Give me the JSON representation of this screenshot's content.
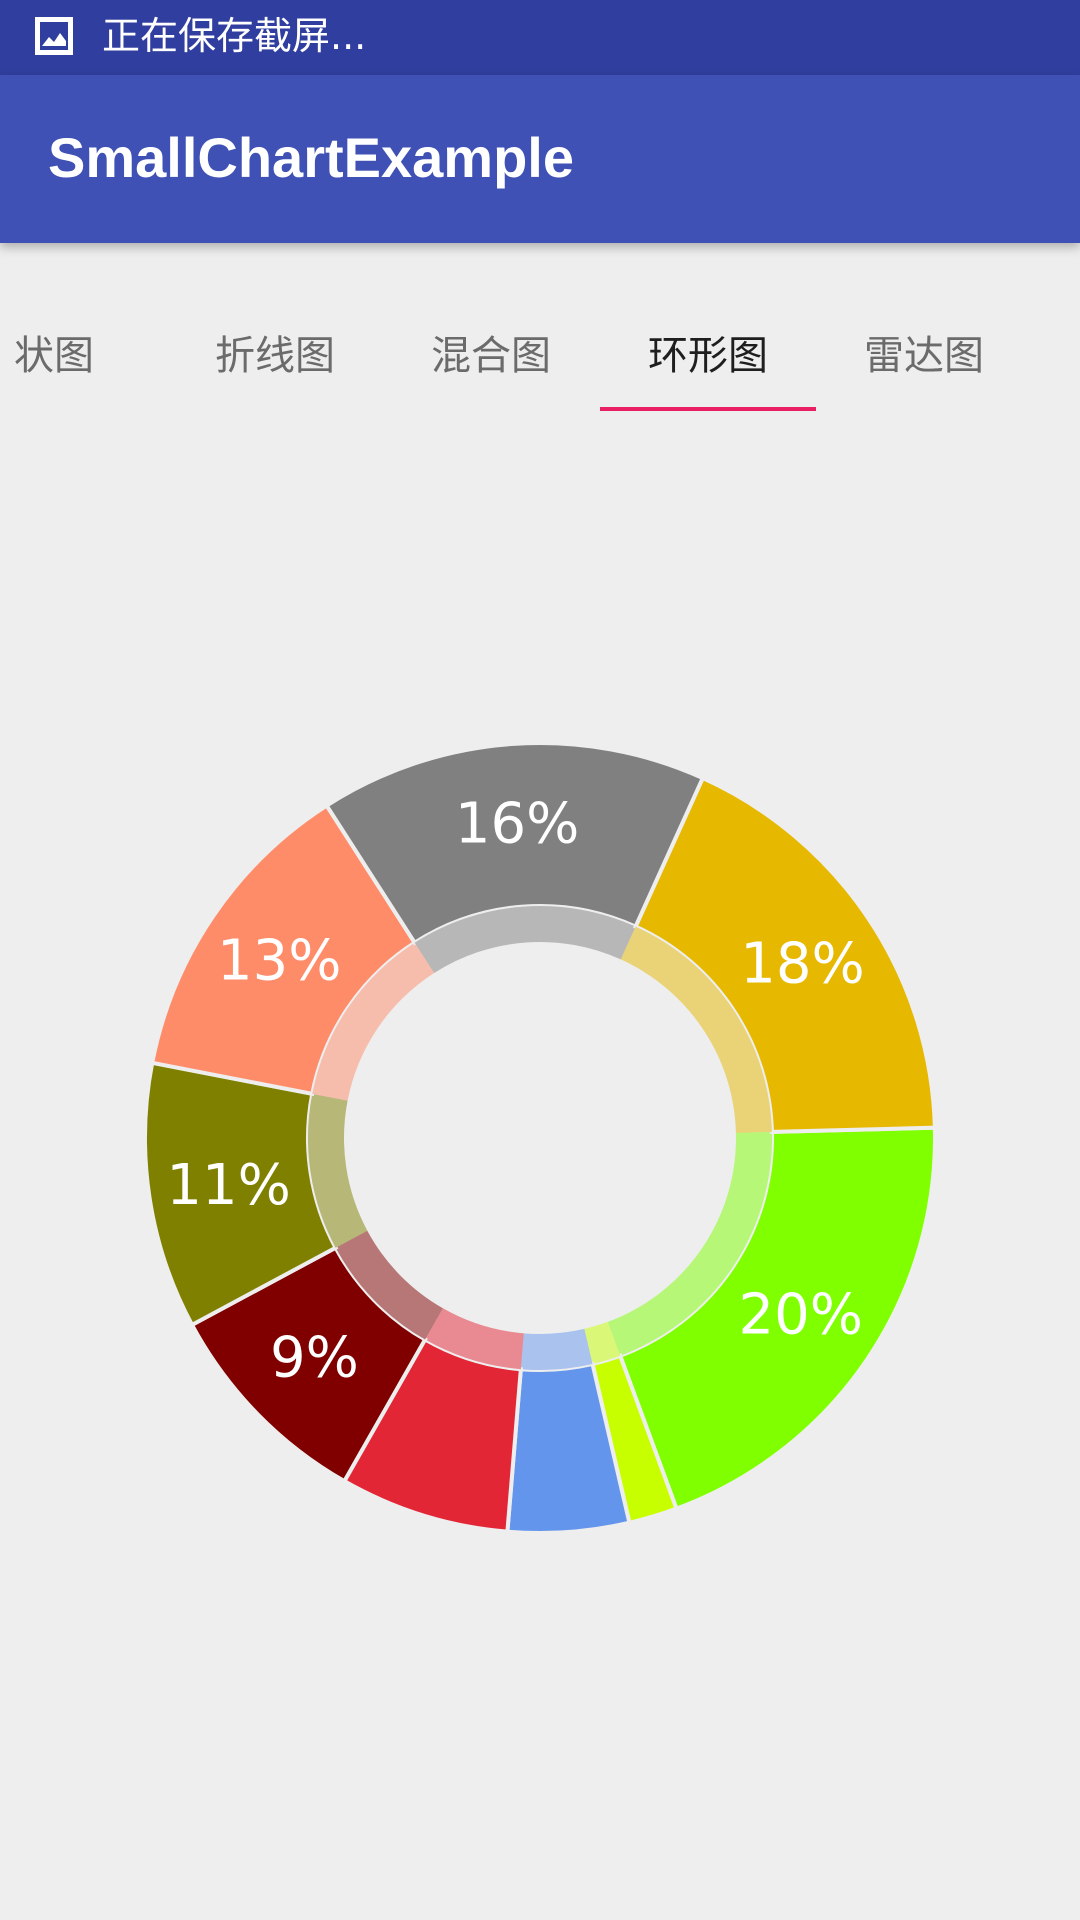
{
  "status_bar": {
    "notification_icon": "image-icon",
    "notification_text": "正在保存截屏..."
  },
  "app_bar": {
    "title": "SmallChartExample"
  },
  "tabs": [
    {
      "label": "状图",
      "active": false
    },
    {
      "label": "折线图",
      "active": false
    },
    {
      "label": "混合图",
      "active": false
    },
    {
      "label": "环形图",
      "active": true
    },
    {
      "label": "雷达图",
      "active": false
    }
  ],
  "colors": {
    "status_bar": "#303f9f",
    "app_bar": "#3f51b5",
    "tab_indicator": "#e91e63",
    "background": "#eeeeee"
  },
  "chart_data": {
    "type": "pie",
    "variant": "donut",
    "slices": [
      {
        "value": 20,
        "label": "20%",
        "color": "#7fff00"
      },
      {
        "value": 2,
        "label": "",
        "color": "#c8ff00"
      },
      {
        "value": 5,
        "label": "",
        "color": "#6495ed"
      },
      {
        "value": 7,
        "label": "",
        "color": "#e32636"
      },
      {
        "value": 9,
        "label": "9%",
        "color": "#800000"
      },
      {
        "value": 11,
        "label": "11%",
        "color": "#808000"
      },
      {
        "value": 13,
        "label": "13%",
        "color": "#ff8c69"
      },
      {
        "value": 16,
        "label": "16%",
        "color": "#808080"
      },
      {
        "value": 18,
        "label": "18%",
        "color": "#e6b800"
      }
    ]
  }
}
